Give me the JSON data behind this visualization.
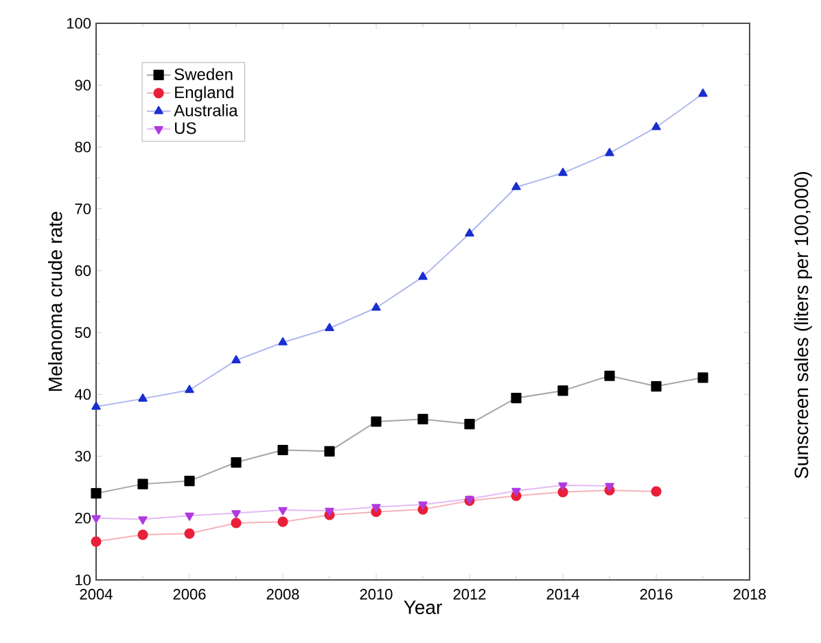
{
  "chart_data": {
    "type": "line",
    "xlabel": "Year",
    "ylabel": "Melanoma crude rate",
    "y2label": "Sunscreen sales (liters per 100,000)",
    "xlim": [
      2004,
      2018
    ],
    "xticks": [
      2004,
      2006,
      2008,
      2010,
      2012,
      2014,
      2016,
      2018
    ],
    "ylim": [
      10,
      100
    ],
    "yticks": [
      10,
      20,
      30,
      40,
      50,
      60,
      70,
      80,
      90,
      100
    ],
    "legend": "top left",
    "grid": false,
    "series": [
      {
        "name": "Sweden",
        "color": "#000000",
        "marker": "square",
        "x": [
          2004,
          2005,
          2006,
          2007,
          2008,
          2009,
          2010,
          2011,
          2012,
          2013,
          2014,
          2015,
          2016,
          2017
        ],
        "values": [
          24,
          25.5,
          26,
          29,
          31,
          30.8,
          35.6,
          36,
          35.2,
          39.4,
          40.6,
          43,
          41.3,
          42.7
        ]
      },
      {
        "name": "England",
        "color": "#e8203a",
        "marker": "circle",
        "x": [
          2004,
          2005,
          2006,
          2007,
          2008,
          2009,
          2010,
          2011,
          2012,
          2013,
          2014,
          2015,
          2016
        ],
        "values": [
          16.2,
          17.3,
          17.5,
          19.2,
          19.4,
          20.5,
          21,
          21.4,
          22.8,
          23.6,
          24.2,
          24.5,
          24.3
        ]
      },
      {
        "name": "Australia",
        "color": "#1a2fd0",
        "marker": "triangle",
        "x": [
          2004,
          2005,
          2006,
          2007,
          2008,
          2009,
          2010,
          2011,
          2012,
          2013,
          2014,
          2015,
          2016,
          2017
        ],
        "values": [
          38,
          39.3,
          40.7,
          45.5,
          48.4,
          50.7,
          54,
          59,
          66,
          73.5,
          75.8,
          79,
          83.2,
          88.6
        ]
      },
      {
        "name": "US",
        "color": "#b03ae0",
        "marker": "triangle down",
        "x": [
          2004,
          2005,
          2006,
          2007,
          2008,
          2009,
          2010,
          2011,
          2012,
          2013,
          2014,
          2015
        ],
        "values": [
          20,
          19.8,
          20.4,
          20.8,
          21.3,
          21.2,
          21.8,
          22.2,
          23.1,
          24.4,
          25.3,
          25.2
        ]
      }
    ]
  }
}
